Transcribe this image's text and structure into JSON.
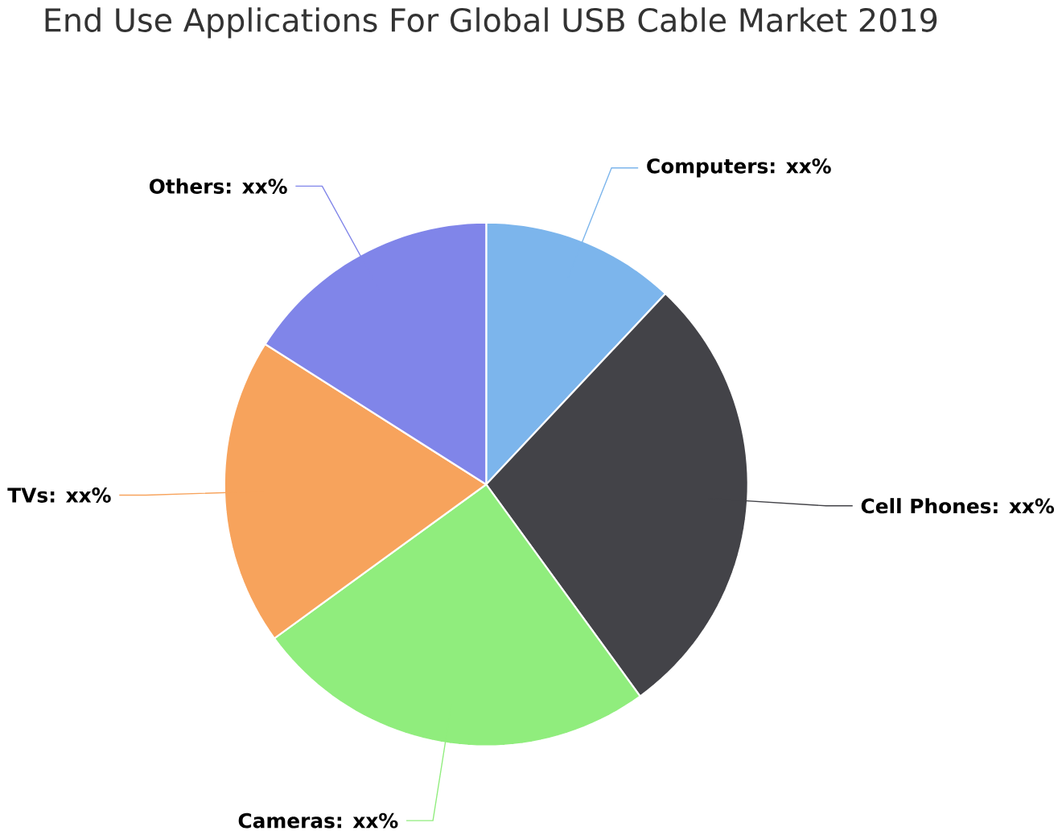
{
  "chart_data": {
    "type": "pie",
    "title": "End Use Applications For Global USB Cable Market 2019",
    "categories": [
      "Computers: xx%",
      "Cell Phones: xx%",
      "Cameras: xx%",
      "TVs: xx%",
      "Others: xx%"
    ],
    "values": [
      12,
      28,
      25,
      19,
      16
    ],
    "colors": [
      "#7cb5ec",
      "#434348",
      "#90ed7d",
      "#f7a35c",
      "#8085e9"
    ]
  }
}
